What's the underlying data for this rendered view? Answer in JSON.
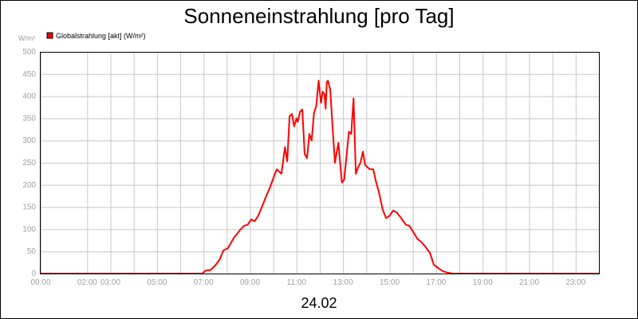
{
  "colors": {
    "series": "#ff0000",
    "legend_box": "#ff0000",
    "grid": "#c8c8c8",
    "axis_text": "#a0a0a0",
    "title_text": "#000000"
  },
  "chart_data": {
    "type": "line",
    "title": "Sonneneinstrahlung [pro Tag]",
    "ylabel": "W/m²",
    "xlabel": "24.02",
    "ylim": [
      0,
      500
    ],
    "xlim": [
      0,
      24
    ],
    "grid": true,
    "legend_position": "top-left",
    "y_ticks": [
      0,
      50,
      100,
      150,
      200,
      250,
      300,
      350,
      400,
      450,
      500
    ],
    "y_tick_labels": [
      "0",
      "50",
      "100",
      "150",
      "200",
      "250",
      "300",
      "350",
      "400",
      "450",
      "500"
    ],
    "x_ticks": [
      0,
      2,
      3,
      5,
      7,
      9,
      11,
      13,
      15,
      17,
      19,
      21,
      23
    ],
    "x_tick_labels": [
      "00:00",
      "02:00",
      "03:00",
      "05:00",
      "07:00",
      "09:00",
      "11:00",
      "13:00",
      "15:00",
      "17:00",
      "19:00",
      "21:00",
      "23:00"
    ],
    "x_gridlines": [
      0,
      2,
      3,
      4,
      5,
      6,
      7,
      8,
      9,
      10,
      11,
      12,
      13,
      14,
      15,
      16,
      17,
      18,
      19,
      20,
      21,
      22,
      23,
      24
    ],
    "series": [
      {
        "name": "Globalstrahlung [akt] (W/m²)",
        "color": "#ff0000",
        "x": [
          0,
          6.95,
          7.1,
          7.3,
          7.5,
          7.7,
          7.85,
          8.05,
          8.3,
          8.55,
          8.75,
          8.9,
          9.05,
          9.2,
          9.35,
          9.55,
          9.7,
          9.85,
          10.0,
          10.15,
          10.35,
          10.5,
          10.6,
          10.7,
          10.8,
          10.9,
          11.0,
          11.05,
          11.15,
          11.25,
          11.35,
          11.45,
          11.55,
          11.65,
          11.75,
          11.85,
          11.95,
          12.05,
          12.12,
          12.2,
          12.25,
          12.3,
          12.35,
          12.45,
          12.55,
          12.65,
          12.8,
          12.95,
          13.05,
          13.15,
          13.25,
          13.35,
          13.45,
          13.55,
          13.65,
          13.75,
          13.85,
          13.95,
          14.05,
          14.15,
          14.3,
          14.4,
          14.55,
          14.7,
          14.85,
          15.0,
          15.15,
          15.3,
          15.5,
          15.7,
          15.85,
          16.0,
          16.2,
          16.35,
          16.55,
          16.75,
          16.9,
          17.1,
          17.3,
          17.5,
          17.7,
          17.9,
          18.1,
          18.25,
          18.4,
          24
        ],
        "values": [
          0,
          0,
          7,
          8,
          18,
          32,
          52,
          57,
          80,
          97,
          108,
          110,
          122,
          118,
          130,
          155,
          175,
          193,
          215,
          235,
          225,
          285,
          253,
          355,
          360,
          332,
          350,
          342,
          365,
          370,
          270,
          260,
          315,
          300,
          362,
          378,
          435,
          385,
          410,
          405,
          372,
          432,
          435,
          415,
          330,
          250,
          295,
          205,
          212,
          265,
          320,
          315,
          395,
          225,
          240,
          250,
          275,
          245,
          240,
          235,
          235,
          210,
          182,
          145,
          125,
          130,
          142,
          138,
          125,
          110,
          108,
          95,
          78,
          72,
          60,
          45,
          20,
          12,
          5,
          2,
          0,
          0,
          0,
          0,
          0,
          0
        ]
      }
    ]
  }
}
